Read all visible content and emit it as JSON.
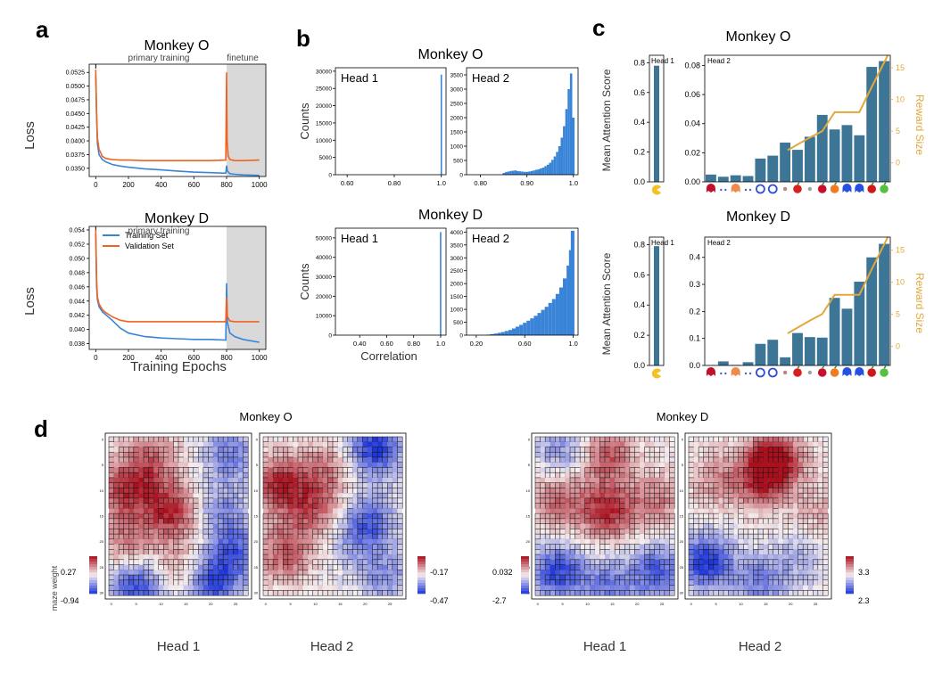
{
  "panels": {
    "a": {
      "letter": "a",
      "ylabel": "Loss",
      "xlabel": "Training Epochs",
      "band_labels": [
        "primary training",
        "finetune"
      ],
      "legend": [
        "Training Set",
        "Validation Set"
      ],
      "monkey_o": {
        "title": "Monkey O"
      },
      "monkey_d": {
        "title": "Monkey D"
      }
    },
    "b": {
      "letter": "b",
      "ylabel": "Counts",
      "xlabel": "Correlation",
      "monkey_o": {
        "title": "Monkey O"
      },
      "monkey_d": {
        "title": "Monkey D"
      }
    },
    "c": {
      "letter": "c",
      "ylabel": "Mean Attention Score",
      "y2label": "Reward Size",
      "monkey_o": {
        "title": "Monkey O"
      },
      "monkey_d": {
        "title": "Monkey D"
      }
    },
    "d": {
      "letter": "d",
      "ylabel": "maze weight",
      "monkey_o": {
        "title": "Monkey O",
        "head1": "Head 1",
        "head2": "Head 2",
        "cb1": {
          "max": "0.27",
          "min": "-0.94"
        },
        "cb2": {
          "max": "-0.17",
          "min": "-0.47"
        }
      },
      "monkey_d": {
        "title": "Monkey D",
        "head1": "Head 1",
        "head2": "Head 2",
        "cb1": {
          "max": "0.032",
          "min": "-2.7"
        },
        "cb2": {
          "max": "3.3",
          "min": "2.3"
        }
      }
    }
  },
  "colors": {
    "train": "#3a84d8",
    "val": "#f0621f",
    "bar": "#3c7596",
    "reward": "#e1a83a",
    "hist": "#3a84d8",
    "band": "#d9d9d9",
    "heat_hi": "#a8101e",
    "heat_lo": "#1e36d8"
  },
  "chart_data": [
    {
      "id": "a_o",
      "type": "line",
      "title": "Monkey O",
      "xlim": [
        -40,
        1040
      ],
      "ylim": [
        0.0335,
        0.054
      ],
      "xticks": [
        0,
        200,
        400,
        600,
        800,
        1000
      ],
      "yticks": [
        0.035,
        0.0375,
        0.04,
        0.0425,
        0.045,
        0.0475,
        0.05,
        0.0525
      ],
      "ytick_labels": [
        "0.0350",
        "0.0375",
        "0.0400",
        "0.0425",
        "0.0450",
        "0.0475",
        "0.0500",
        "0.0525"
      ],
      "finetune_start": 800,
      "series": [
        {
          "name": "Training Set",
          "x": [
            0,
            5,
            10,
            20,
            40,
            60,
            100,
            150,
            200,
            300,
            400,
            500,
            600,
            700,
            795,
            800,
            805,
            820,
            850,
            900,
            1000
          ],
          "y": [
            0.052,
            0.0445,
            0.0395,
            0.0375,
            0.0366,
            0.0362,
            0.0357,
            0.0354,
            0.0352,
            0.0349,
            0.0347,
            0.0345,
            0.0343,
            0.0342,
            0.0341,
            0.0355,
            0.0345,
            0.034,
            0.0339,
            0.0338,
            0.0337
          ]
        },
        {
          "name": "Validation Set",
          "x": [
            0,
            5,
            10,
            20,
            40,
            60,
            100,
            150,
            200,
            300,
            400,
            500,
            600,
            700,
            795,
            800,
            803,
            810,
            820,
            850,
            900,
            1000
          ],
          "y": [
            0.053,
            0.045,
            0.0405,
            0.0385,
            0.0372,
            0.0368,
            0.0366,
            0.0365,
            0.0365,
            0.0364,
            0.0364,
            0.0364,
            0.0364,
            0.0364,
            0.0365,
            0.0525,
            0.04,
            0.0372,
            0.0366,
            0.0364,
            0.0364,
            0.0365
          ]
        }
      ]
    },
    {
      "id": "a_d",
      "type": "line",
      "title": "Monkey D",
      "xlim": [
        -40,
        1040
      ],
      "ylim": [
        0.0372,
        0.0545
      ],
      "xticks": [
        0,
        200,
        400,
        600,
        800,
        1000
      ],
      "yticks": [
        0.038,
        0.04,
        0.042,
        0.044,
        0.046,
        0.048,
        0.05,
        0.052,
        0.054
      ],
      "ytick_labels": [
        "0.038",
        "0.040",
        "0.042",
        "0.044",
        "0.046",
        "0.048",
        "0.050",
        "0.052",
        "0.054"
      ],
      "finetune_start": 800,
      "series": [
        {
          "name": "Training Set",
          "x": [
            0,
            5,
            10,
            20,
            40,
            60,
            100,
            150,
            200,
            300,
            400,
            500,
            600,
            700,
            795,
            800,
            805,
            820,
            850,
            900,
            1000
          ],
          "y": [
            0.0535,
            0.046,
            0.0442,
            0.0432,
            0.0425,
            0.0421,
            0.0413,
            0.0402,
            0.0395,
            0.039,
            0.0388,
            0.0387,
            0.0386,
            0.0386,
            0.0385,
            0.0465,
            0.041,
            0.0395,
            0.039,
            0.0386,
            0.0382
          ]
        },
        {
          "name": "Validation Set",
          "x": [
            0,
            5,
            10,
            20,
            40,
            60,
            100,
            150,
            200,
            300,
            400,
            500,
            600,
            700,
            795,
            800,
            805,
            820,
            850,
            900,
            1000
          ],
          "y": [
            0.054,
            0.047,
            0.0446,
            0.0436,
            0.0428,
            0.0424,
            0.0418,
            0.0413,
            0.0411,
            0.0411,
            0.0411,
            0.0411,
            0.0411,
            0.0411,
            0.0411,
            0.0445,
            0.0418,
            0.0412,
            0.0411,
            0.0411,
            0.0411
          ]
        }
      ]
    },
    {
      "id": "b_o_h1",
      "type": "bar",
      "label": "Head 1",
      "xlim": [
        0.55,
        1.02
      ],
      "ylim": [
        0,
        31000
      ],
      "xticks": [
        0.6,
        0.8,
        1.0
      ],
      "xtick_labels": [
        "0.60",
        "0.80",
        "1.0"
      ],
      "yticks": [
        0,
        5000,
        10000,
        15000,
        20000,
        25000,
        30000
      ],
      "bins": [
        {
          "x": 1.0,
          "count": 29000
        }
      ]
    },
    {
      "id": "b_o_h2",
      "type": "bar",
      "label": "Head 2",
      "xlim": [
        0.77,
        1.01
      ],
      "ylim": [
        0,
        3750
      ],
      "xticks": [
        0.8,
        0.9,
        1.0
      ],
      "xtick_labels": [
        "0.80",
        "0.90",
        "1.0"
      ],
      "yticks": [
        0,
        500,
        1000,
        1500,
        2000,
        2500,
        3000,
        3500
      ],
      "bins": [
        {
          "x": 0.85,
          "count": 60
        },
        {
          "x": 0.855,
          "count": 90
        },
        {
          "x": 0.86,
          "count": 110
        },
        {
          "x": 0.865,
          "count": 130
        },
        {
          "x": 0.87,
          "count": 140
        },
        {
          "x": 0.875,
          "count": 150
        },
        {
          "x": 0.88,
          "count": 130
        },
        {
          "x": 0.885,
          "count": 120
        },
        {
          "x": 0.89,
          "count": 110
        },
        {
          "x": 0.895,
          "count": 100
        },
        {
          "x": 0.9,
          "count": 100
        },
        {
          "x": 0.905,
          "count": 110
        },
        {
          "x": 0.91,
          "count": 130
        },
        {
          "x": 0.915,
          "count": 150
        },
        {
          "x": 0.92,
          "count": 170
        },
        {
          "x": 0.925,
          "count": 190
        },
        {
          "x": 0.93,
          "count": 220
        },
        {
          "x": 0.935,
          "count": 250
        },
        {
          "x": 0.94,
          "count": 300
        },
        {
          "x": 0.945,
          "count": 350
        },
        {
          "x": 0.95,
          "count": 420
        },
        {
          "x": 0.955,
          "count": 520
        },
        {
          "x": 0.96,
          "count": 640
        },
        {
          "x": 0.965,
          "count": 800
        },
        {
          "x": 0.97,
          "count": 1000
        },
        {
          "x": 0.975,
          "count": 1300
        },
        {
          "x": 0.98,
          "count": 1700
        },
        {
          "x": 0.985,
          "count": 2300
        },
        {
          "x": 0.99,
          "count": 3000
        },
        {
          "x": 0.995,
          "count": 3550
        },
        {
          "x": 1.0,
          "count": 2000
        }
      ]
    },
    {
      "id": "b_d_h1",
      "type": "bar",
      "label": "Head 1",
      "xlim": [
        0.22,
        1.04
      ],
      "ylim": [
        0,
        55000
      ],
      "xticks": [
        0.4,
        0.6,
        0.8,
        1.0
      ],
      "xtick_labels": [
        "0.40",
        "0.60",
        "0.80",
        "1.0"
      ],
      "yticks": [
        0,
        10000,
        20000,
        30000,
        40000,
        50000
      ],
      "bins": [
        {
          "x": 1.0,
          "count": 53000
        }
      ]
    },
    {
      "id": "b_d_h2",
      "type": "bar",
      "label": "Head 2",
      "xlim": [
        0.12,
        1.04
      ],
      "ylim": [
        0,
        4150
      ],
      "xticks": [
        0.2,
        0.6,
        1.0
      ],
      "xtick_labels": [
        "0.20",
        "0.60",
        "1.0"
      ],
      "yticks": [
        0,
        500,
        1000,
        1500,
        2000,
        2500,
        3000,
        3500,
        4000
      ],
      "bins": [
        {
          "x": 0.3,
          "count": 20
        },
        {
          "x": 0.33,
          "count": 40
        },
        {
          "x": 0.36,
          "count": 60
        },
        {
          "x": 0.39,
          "count": 90
        },
        {
          "x": 0.42,
          "count": 120
        },
        {
          "x": 0.45,
          "count": 160
        },
        {
          "x": 0.48,
          "count": 200
        },
        {
          "x": 0.51,
          "count": 260
        },
        {
          "x": 0.54,
          "count": 330
        },
        {
          "x": 0.57,
          "count": 400
        },
        {
          "x": 0.6,
          "count": 480
        },
        {
          "x": 0.63,
          "count": 560
        },
        {
          "x": 0.66,
          "count": 650
        },
        {
          "x": 0.69,
          "count": 750
        },
        {
          "x": 0.72,
          "count": 860
        },
        {
          "x": 0.75,
          "count": 980
        },
        {
          "x": 0.78,
          "count": 1100
        },
        {
          "x": 0.81,
          "count": 1250
        },
        {
          "x": 0.84,
          "count": 1400
        },
        {
          "x": 0.87,
          "count": 1600
        },
        {
          "x": 0.9,
          "count": 1850
        },
        {
          "x": 0.93,
          "count": 2200
        },
        {
          "x": 0.96,
          "count": 2700
        },
        {
          "x": 0.98,
          "count": 3300
        },
        {
          "x": 0.995,
          "count": 4050
        }
      ]
    },
    {
      "id": "c_o",
      "type": "bar",
      "title": "Monkey O",
      "head1": {
        "label": "Head 1",
        "value": 0.78,
        "ylim": [
          0,
          0.85
        ],
        "yticks": [
          0,
          0.2,
          0.4,
          0.6,
          0.8
        ],
        "ytick_labels": [
          "0.0",
          "0.2",
          "0.4",
          "0.6",
          "0.8"
        ]
      },
      "head2": {
        "label": "Head 2",
        "ylim": [
          0,
          0.087
        ],
        "yticks": [
          0,
          0.02,
          0.04,
          0.06,
          0.08
        ],
        "ytick_labels": [
          "0.00",
          "0.02",
          "0.04",
          "0.06",
          "0.08"
        ],
        "values": [
          0.005,
          0.0035,
          0.0045,
          0.004,
          0.016,
          0.018,
          0.027,
          0.022,
          0.031,
          0.046,
          0.036,
          0.039,
          0.032,
          0.079,
          0.083
        ]
      },
      "reward": {
        "ylim": [
          -3,
          17
        ],
        "yticks": [
          0,
          5,
          10,
          15
        ],
        "points": [
          {
            "i": 6.2,
            "v": 2
          },
          {
            "i": 8,
            "v": 4
          },
          {
            "i": 9,
            "v": 5
          },
          {
            "i": 10,
            "v": 8
          },
          {
            "i": 12,
            "v": 8
          },
          {
            "i": 13,
            "v": 12
          },
          {
            "i": 14.3,
            "v": 17
          }
        ]
      }
    },
    {
      "id": "c_d",
      "type": "bar",
      "title": "Monkey D",
      "head1": {
        "label": "Head 1",
        "value": 0.79,
        "ylim": [
          0,
          0.85
        ],
        "yticks": [
          0,
          0.2,
          0.4,
          0.6,
          0.8
        ],
        "ytick_labels": [
          "0.0",
          "0.2",
          "0.4",
          "0.6",
          "0.8"
        ]
      },
      "head2": {
        "label": "Head 2",
        "ylim": [
          0,
          0.475
        ],
        "yticks": [
          0,
          0.1,
          0.2,
          0.3,
          0.4
        ],
        "ytick_labels": [
          "0.0",
          "0.1",
          "0.2",
          "0.3",
          "0.4"
        ],
        "values": [
          0.001,
          0.015,
          0.002,
          0.012,
          0.08,
          0.095,
          0.03,
          0.12,
          0.105,
          0.103,
          0.25,
          0.21,
          0.31,
          0.4,
          0.45
        ]
      },
      "reward": {
        "ylim": [
          -3,
          17
        ],
        "yticks": [
          0,
          5,
          10,
          15
        ],
        "points": [
          {
            "i": 6.2,
            "v": 2
          },
          {
            "i": 8,
            "v": 4
          },
          {
            "i": 9,
            "v": 5
          },
          {
            "i": 10,
            "v": 8
          },
          {
            "i": 12,
            "v": 8
          },
          {
            "i": 13,
            "v": 12
          },
          {
            "i": 14.3,
            "v": 17
          }
        ]
      }
    },
    {
      "id": "d_maps",
      "type": "heatmap",
      "xticks": [
        0,
        5,
        10,
        15,
        20,
        25
      ],
      "yticks": [
        0,
        5,
        10,
        15,
        20,
        25,
        30
      ],
      "heads": [
        "Monkey O Head 1",
        "Monkey O Head 2",
        "Monkey D Head 1",
        "Monkey D Head 2"
      ]
    }
  ]
}
